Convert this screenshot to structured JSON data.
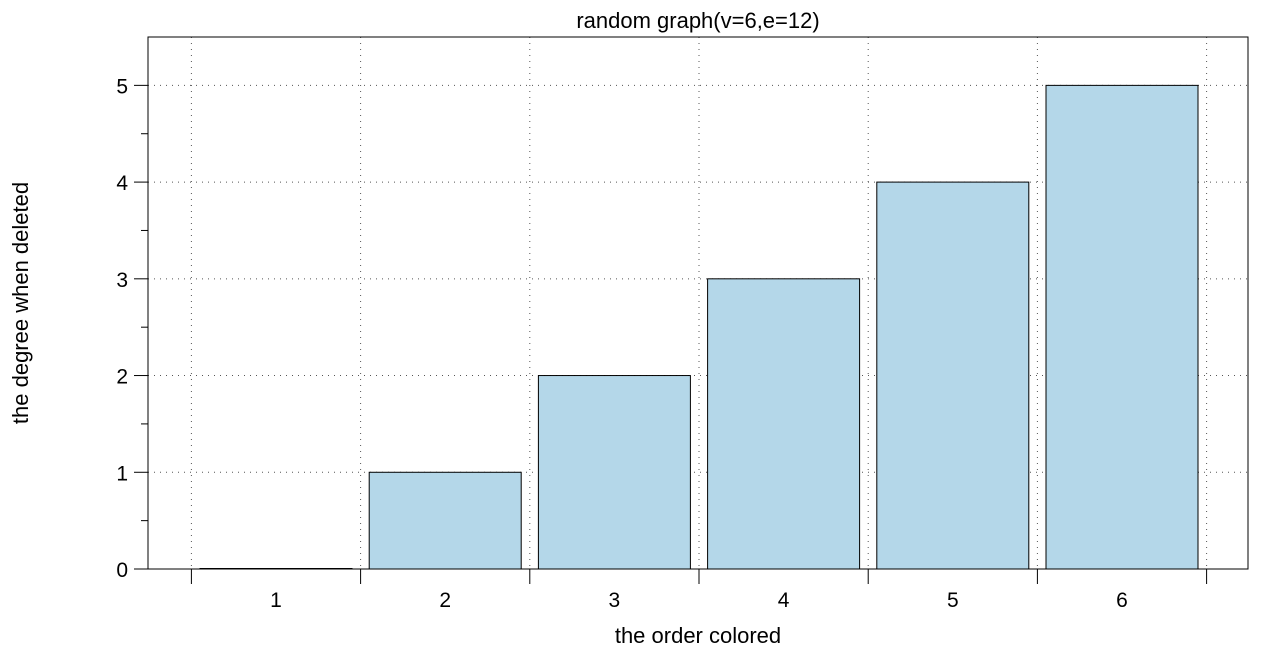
{
  "chart_data": {
    "type": "bar",
    "title": "random graph(v=6,e=12)",
    "xlabel": "the order colored",
    "ylabel": "the degree when deleted",
    "categories": [
      "1",
      "2",
      "3",
      "4",
      "5",
      "6"
    ],
    "values": [
      0,
      1,
      2,
      3,
      4,
      5
    ],
    "ylim": [
      0,
      5.5
    ],
    "yticks": [
      0,
      1,
      2,
      3,
      4,
      5
    ],
    "ytick_labels": [
      "0",
      "1",
      "2",
      "3",
      "4",
      "5"
    ],
    "grid": true,
    "bar_color": "#b4d7e9",
    "edge_color": "#000000"
  }
}
